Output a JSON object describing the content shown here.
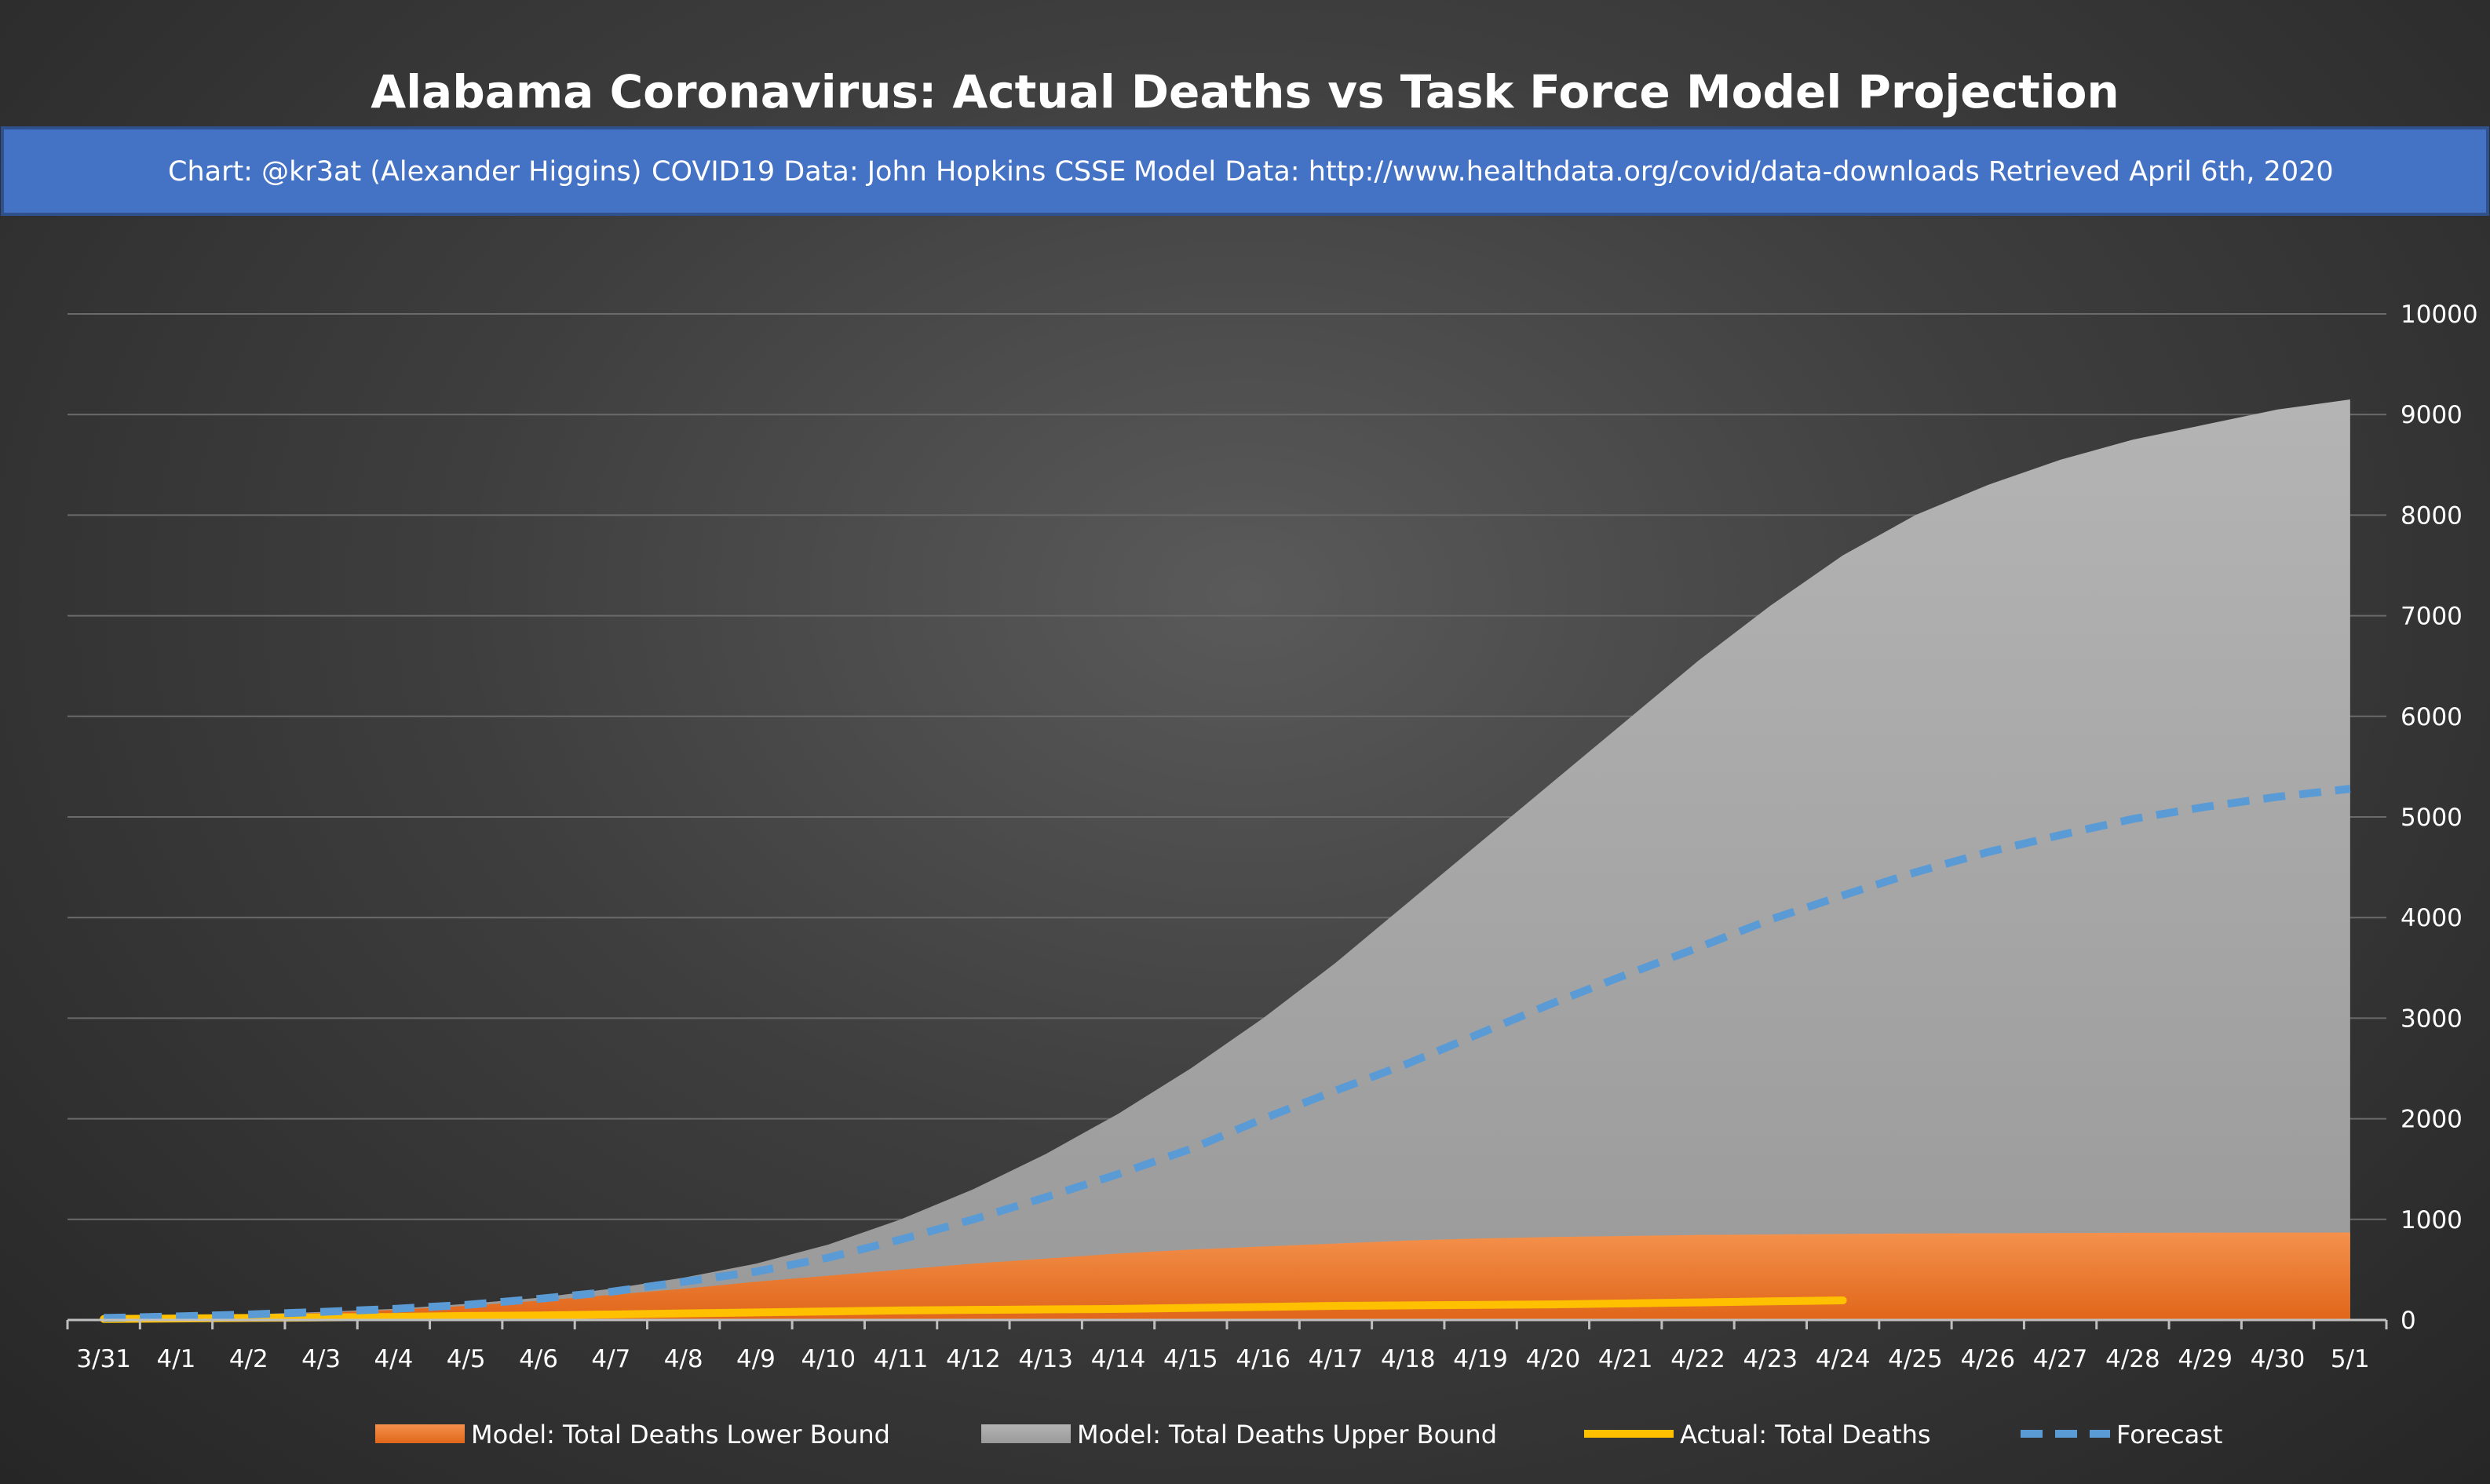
{
  "chart_data": {
    "type": "area",
    "title": "Alabama Coronavirus: Actual Deaths vs Task Force Model Projection",
    "subtitle_parts": [
      "Chart: @kr3at (Alexander Higgins)",
      "COVID19 Data: John Hopkins CSSE",
      "Model Data: http://www.healthdata.org/covid/data-downloads Retrieved April 6th, 2020"
    ],
    "x": [
      "3/31",
      "4/1",
      "4/2",
      "4/3",
      "4/4",
      "4/5",
      "4/6",
      "4/7",
      "4/8",
      "4/9",
      "4/10",
      "4/11",
      "4/12",
      "4/13",
      "4/14",
      "4/15",
      "4/16",
      "4/17",
      "4/18",
      "4/19",
      "4/20",
      "4/21",
      "4/22",
      "4/23",
      "4/24",
      "4/25",
      "4/26",
      "4/27",
      "4/28",
      "4/29",
      "4/30",
      "5/1"
    ],
    "ylim": [
      0,
      10000
    ],
    "yticks": [
      "0",
      "1000",
      "2000",
      "3000",
      "4000",
      "5000",
      "6000",
      "7000",
      "8000",
      "9000",
      "10000"
    ],
    "y_axis_position": "right",
    "grid": true,
    "legend_position": "bottom",
    "colors": {
      "lower": "#f07e28",
      "upper": "#a6a6a6",
      "actual": "#ffc000",
      "forecast": "#5b9bd5",
      "banner": "#4472c4"
    },
    "series": [
      {
        "name": "Model: Total Deaths Lower Bound",
        "type": "area",
        "values": [
          20,
          35,
          50,
          70,
          100,
          140,
          190,
          250,
          310,
          380,
          440,
          500,
          560,
          610,
          660,
          700,
          730,
          760,
          790,
          810,
          825,
          835,
          845,
          850,
          855,
          860,
          862,
          865,
          867,
          868,
          869,
          870
        ]
      },
      {
        "name": "Model: Total Deaths Upper Bound",
        "type": "area",
        "values": [
          20,
          35,
          55,
          80,
          110,
          160,
          220,
          310,
          420,
          560,
          750,
          1000,
          1300,
          1650,
          2050,
          2500,
          3000,
          3550,
          4150,
          4750,
          5350,
          5950,
          6550,
          7100,
          7600,
          8000,
          8300,
          8550,
          8750,
          8900,
          9050,
          9150
        ]
      },
      {
        "name": "Actual: Total Deaths",
        "type": "line",
        "values": [
          10,
          15,
          20,
          25,
          30,
          40,
          45,
          55,
          65,
          75,
          85,
          95,
          100,
          105,
          110,
          120,
          130,
          140,
          145,
          150,
          155,
          165,
          175,
          185,
          195,
          null,
          null,
          null,
          null,
          null,
          null,
          null
        ]
      },
      {
        "name": "Forecast",
        "type": "dashed-line",
        "values": [
          20,
          35,
          55,
          80,
          110,
          150,
          210,
          280,
          380,
          480,
          620,
          800,
          1000,
          1220,
          1450,
          1700,
          2000,
          2280,
          2550,
          2850,
          3150,
          3430,
          3700,
          3980,
          4220,
          4450,
          4650,
          4820,
          4980,
          5100,
          5200,
          5280
        ]
      }
    ]
  }
}
